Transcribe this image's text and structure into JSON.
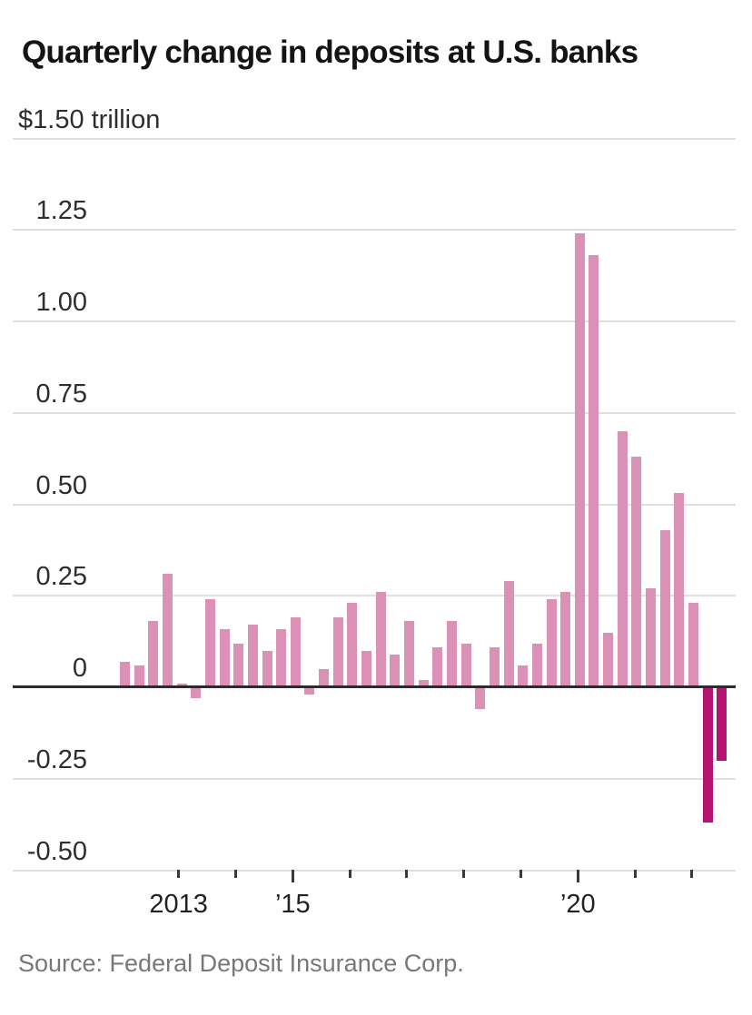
{
  "title": "Quarterly change in deposits at U.S. banks",
  "source": "Source: Federal Deposit Insurance Corp.",
  "y_axis": {
    "tick_labels": [
      "$1.50 trillion",
      "1.25",
      "1.00",
      "0.75",
      "0.50",
      "0.25",
      "0",
      "-0.25",
      "-0.50"
    ],
    "tick_values": [
      1.5,
      1.25,
      1.0,
      0.75,
      0.5,
      0.25,
      0,
      -0.25,
      -0.5
    ]
  },
  "x_axis": {
    "ticks": [
      {
        "year": 2013,
        "label": "2013",
        "long": false
      },
      {
        "year": 2014,
        "label": "",
        "long": false
      },
      {
        "year": 2015,
        "label": "’15",
        "long": true
      },
      {
        "year": 2016,
        "label": "",
        "long": false
      },
      {
        "year": 2017,
        "label": "",
        "long": false
      },
      {
        "year": 2018,
        "label": "",
        "long": false
      },
      {
        "year": 2019,
        "label": "",
        "long": false
      },
      {
        "year": 2020,
        "label": "’20",
        "long": true
      },
      {
        "year": 2021,
        "label": "",
        "long": false
      },
      {
        "year": 2022,
        "label": "",
        "long": false
      }
    ]
  },
  "chart_data": {
    "type": "bar",
    "title": "Quarterly change in deposits at U.S. banks",
    "ylabel": "$ trillion",
    "ylim": [
      -0.5,
      1.5
    ],
    "grid": "horizontal",
    "legend": "none",
    "bar_color": "#DB90B5",
    "highlight_color": "#B61270",
    "highlight_indices": [
      41,
      42
    ],
    "categories": [
      "2012 Q1",
      "2012 Q2",
      "2012 Q3",
      "2012 Q4",
      "2013 Q1",
      "2013 Q2",
      "2013 Q3",
      "2013 Q4",
      "2014 Q1",
      "2014 Q2",
      "2014 Q3",
      "2014 Q4",
      "2015 Q1",
      "2015 Q2",
      "2015 Q3",
      "2015 Q4",
      "2016 Q1",
      "2016 Q2",
      "2016 Q3",
      "2016 Q4",
      "2017 Q1",
      "2017 Q2",
      "2017 Q3",
      "2017 Q4",
      "2018 Q1",
      "2018 Q2",
      "2018 Q3",
      "2018 Q4",
      "2019 Q1",
      "2019 Q2",
      "2019 Q3",
      "2019 Q4",
      "2020 Q1",
      "2020 Q2",
      "2020 Q3",
      "2020 Q4",
      "2021 Q1",
      "2021 Q2",
      "2021 Q3",
      "2021 Q4",
      "2022 Q1",
      "2022 Q2",
      "2022 Q3"
    ],
    "values": [
      0.07,
      0.06,
      0.18,
      0.31,
      0.005,
      -0.03,
      0.24,
      0.16,
      0.12,
      0.17,
      0.1,
      0.16,
      0.19,
      -0.02,
      0.05,
      0.19,
      0.23,
      0.1,
      0.26,
      0.09,
      0.18,
      0.02,
      0.11,
      0.18,
      0.12,
      -0.06,
      0.11,
      0.29,
      0.06,
      0.12,
      0.24,
      0.26,
      1.24,
      1.18,
      0.15,
      0.7,
      0.63,
      0.27,
      0.43,
      0.53,
      0.23,
      -0.37,
      -0.2
    ]
  }
}
